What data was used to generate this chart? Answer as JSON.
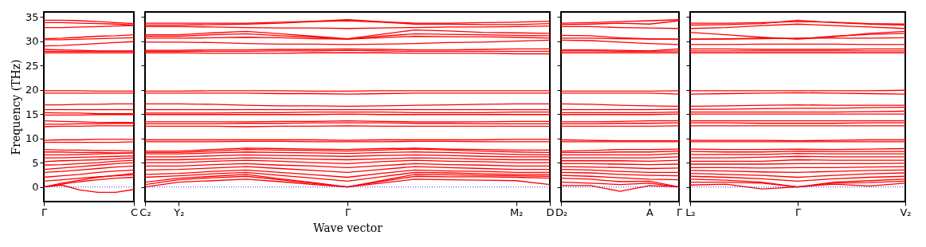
{
  "chart_data": [
    {
      "type": "line",
      "ylabel": "Frequency (THz)",
      "categories": [
        "Γ",
        null,
        null,
        null,
        null,
        "C"
      ],
      "ylim": [
        -3,
        36
      ],
      "yticks": [
        0,
        5,
        10,
        15,
        20,
        25,
        30,
        35
      ],
      "ref_lines": [
        {
          "axis": "y",
          "value": 0,
          "color": "#0000ff",
          "line_style": "dotted"
        }
      ],
      "series": [
        {
          "color": "#ff0000",
          "values": [
            0,
            0.4,
            -0.6,
            -1.1,
            -1.1,
            -0.5
          ]
        },
        {
          "color": "#ff0000",
          "values": [
            0,
            0.6,
            1.1,
            1.5,
            1.8,
            2.0
          ]
        },
        {
          "color": "#ff0000",
          "values": [
            0,
            0.8,
            1.4,
            2.0,
            2.4,
            2.8
          ]
        },
        {
          "color": "#ff0000",
          "values": [
            1.2,
            1.5,
            1.8,
            2.1,
            2.3,
            2.5
          ]
        },
        {
          "color": "#ff0000",
          "values": [
            2.0,
            2.3,
            2.6,
            3.0,
            3.3,
            3.5
          ]
        },
        {
          "color": "#ff0000",
          "values": [
            3.0,
            3.2,
            3.5,
            3.8,
            4.1,
            4.3
          ]
        },
        {
          "color": "#ff0000",
          "values": [
            3.6,
            3.9,
            4.2,
            4.5,
            4.8,
            5.0
          ]
        },
        {
          "color": "#ff0000",
          "values": [
            4.5,
            4.6,
            4.8,
            5.0,
            5.3,
            5.5
          ]
        },
        {
          "color": "#ff0000",
          "values": [
            5.2,
            5.4,
            5.5,
            5.6,
            5.8,
            6.0
          ]
        },
        {
          "color": "#ff0000",
          "values": [
            6.0,
            6.0,
            6.1,
            6.2,
            6.3,
            6.4
          ]
        },
        {
          "color": "#ff0000",
          "values": [
            6.6,
            6.6,
            6.7,
            6.8,
            6.9,
            7.0
          ]
        },
        {
          "color": "#ff0000",
          "values": [
            7.2,
            7.2,
            7.1,
            7.1,
            7.0,
            7.0
          ]
        },
        {
          "color": "#ff0000",
          "values": [
            7.7,
            7.6,
            7.6,
            7.5,
            7.5,
            7.4
          ]
        },
        {
          "color": "#ff0000",
          "values": [
            9.2,
            9.2,
            9.2,
            9.2,
            9.2,
            9.3
          ]
        },
        {
          "color": "#ff0000",
          "values": [
            9.6,
            9.7,
            9.7,
            9.8,
            9.8,
            9.8
          ]
        },
        {
          "color": "#ff0000",
          "values": [
            12.4,
            12.5,
            12.5,
            12.6,
            12.6,
            12.6
          ]
        },
        {
          "color": "#ff0000",
          "values": [
            12.9,
            12.9,
            13.0,
            13.0,
            13.1,
            13.1
          ]
        },
        {
          "color": "#ff0000",
          "values": [
            13.6,
            13.5,
            13.4,
            13.3,
            13.3,
            13.3
          ]
        },
        {
          "color": "#ff0000",
          "values": [
            14.8,
            14.8,
            14.8,
            14.9,
            14.9,
            14.9
          ]
        },
        {
          "color": "#ff0000",
          "values": [
            15.3,
            15.2,
            15.2,
            15.1,
            15.1,
            15.1
          ]
        },
        {
          "color": "#ff0000",
          "values": [
            15.9,
            15.9,
            15.9,
            15.9,
            15.9,
            15.9
          ]
        },
        {
          "color": "#ff0000",
          "values": [
            16.9,
            16.9,
            17.0,
            17.0,
            17.1,
            17.1
          ]
        },
        {
          "color": "#ff0000",
          "values": [
            19.3,
            19.3,
            19.3,
            19.3,
            19.3,
            19.3
          ]
        },
        {
          "color": "#ff0000",
          "values": [
            19.8,
            19.8,
            19.8,
            19.7,
            19.7,
            19.7
          ]
        },
        {
          "color": "#ff0000",
          "values": [
            27.6,
            27.6,
            27.6,
            27.6,
            27.6,
            27.6
          ]
        },
        {
          "color": "#ff0000",
          "values": [
            27.9,
            27.9,
            27.9,
            27.9,
            27.9,
            27.9
          ]
        },
        {
          "color": "#ff0000",
          "values": [
            28.3,
            28.2,
            28.1,
            28.0,
            28.0,
            28.0
          ]
        },
        {
          "color": "#ff0000",
          "values": [
            29.0,
            29.1,
            29.3,
            29.5,
            29.7,
            29.9
          ]
        },
        {
          "color": "#ff0000",
          "values": [
            30.3,
            30.3,
            30.4,
            30.5,
            30.6,
            30.7
          ]
        },
        {
          "color": "#ff0000",
          "values": [
            30.5,
            30.6,
            30.8,
            31.0,
            31.1,
            31.3
          ]
        },
        {
          "color": "#ff0000",
          "values": [
            32.8,
            32.8,
            32.9,
            33.0,
            33.1,
            33.2
          ]
        },
        {
          "color": "#ff0000",
          "values": [
            33.8,
            33.8,
            33.7,
            33.6,
            33.5,
            33.3
          ]
        },
        {
          "color": "#ff0000",
          "values": [
            34.3,
            34.3,
            34.2,
            34.0,
            33.8,
            33.6
          ]
        }
      ]
    },
    {
      "type": "line",
      "xlabel": "Wave vector",
      "tick_labels": "x",
      "categories": [
        "C₂",
        "Y₂",
        null,
        null,
        null,
        null,
        "Γ",
        null,
        null,
        null,
        null,
        "M₂",
        "D"
      ],
      "ylim": [
        -3,
        36
      ],
      "yticks": [
        0,
        5,
        10,
        15,
        20,
        25,
        30,
        35
      ],
      "ref_lines": [
        {
          "axis": "y",
          "value": 0,
          "color": "#0000ff",
          "line_style": "dotted"
        }
      ],
      "series": [
        {
          "color": "#ff0000",
          "values": [
            0,
            1.0,
            1.3,
            1.6,
            1.1,
            0.5,
            0,
            0.8,
            1.6,
            1.5,
            1.4,
            1.3,
            0.5
          ]
        },
        {
          "color": "#ff0000",
          "values": [
            0.5,
            1.5,
            1.9,
            2.2,
            1.5,
            0.7,
            0,
            1.1,
            2.2,
            2.1,
            2.1,
            2.0,
            1.8
          ]
        },
        {
          "color": "#ff0000",
          "values": [
            1.0,
            1.8,
            2.2,
            2.6,
            1.7,
            0.9,
            0,
            1.3,
            2.6,
            2.5,
            2.4,
            2.3,
            2.2
          ]
        },
        {
          "color": "#ff0000",
          "values": [
            2.0,
            2.3,
            2.7,
            3.0,
            2.4,
            1.8,
            1.2,
            2.1,
            3.0,
            2.9,
            2.7,
            2.6,
            2.6
          ]
        },
        {
          "color": "#ff0000",
          "values": [
            2.6,
            2.8,
            3.2,
            3.5,
            3.0,
            2.5,
            2.0,
            2.8,
            3.5,
            3.3,
            3.2,
            3.0,
            3.0
          ]
        },
        {
          "color": "#ff0000",
          "values": [
            3.5,
            3.6,
            3.9,
            4.2,
            3.8,
            3.4,
            3.0,
            3.6,
            4.2,
            4.0,
            3.8,
            3.6,
            3.6
          ]
        },
        {
          "color": "#ff0000",
          "values": [
            4.3,
            4.3,
            4.6,
            4.8,
            4.5,
            4.3,
            4.0,
            4.4,
            4.8,
            4.6,
            4.5,
            4.3,
            4.3
          ]
        },
        {
          "color": "#ff0000",
          "values": [
            5.0,
            5.0,
            5.3,
            5.5,
            5.3,
            5.0,
            4.8,
            5.2,
            5.5,
            5.3,
            5.2,
            5.0,
            5.0
          ]
        },
        {
          "color": "#ff0000",
          "values": [
            5.6,
            5.6,
            5.8,
            6.0,
            5.9,
            5.7,
            5.6,
            5.8,
            6.0,
            5.9,
            5.7,
            5.6,
            5.6
          ]
        },
        {
          "color": "#ff0000",
          "values": [
            6.2,
            6.2,
            6.4,
            6.6,
            6.5,
            6.4,
            6.3,
            6.5,
            6.6,
            6.5,
            6.3,
            6.2,
            6.2
          ]
        },
        {
          "color": "#ff0000",
          "values": [
            6.8,
            6.8,
            7.0,
            7.2,
            7.1,
            7.0,
            6.9,
            7.1,
            7.2,
            7.1,
            6.9,
            6.7,
            6.6
          ]
        },
        {
          "color": "#ff0000",
          "values": [
            7.1,
            7.1,
            7.4,
            7.7,
            7.6,
            7.5,
            7.4,
            7.6,
            7.8,
            7.6,
            7.4,
            7.2,
            7.1
          ]
        },
        {
          "color": "#ff0000",
          "values": [
            7.4,
            7.4,
            7.7,
            8.0,
            7.9,
            7.8,
            7.7,
            7.9,
            8.0,
            7.8,
            7.7,
            7.6,
            7.6
          ]
        },
        {
          "color": "#ff0000",
          "values": [
            9.3,
            9.3,
            9.3,
            9.4,
            9.4,
            9.3,
            9.3,
            9.3,
            9.4,
            9.4,
            9.3,
            9.3,
            9.3
          ]
        },
        {
          "color": "#ff0000",
          "values": [
            9.7,
            9.7,
            9.7,
            9.7,
            9.7,
            9.7,
            9.6,
            9.7,
            9.7,
            9.7,
            9.7,
            9.8,
            9.8
          ]
        },
        {
          "color": "#ff0000",
          "values": [
            12.5,
            12.5,
            12.5,
            12.4,
            12.5,
            12.5,
            12.6,
            12.5,
            12.5,
            12.5,
            12.5,
            12.5,
            12.5
          ]
        },
        {
          "color": "#ff0000",
          "values": [
            13.0,
            13.0,
            13.0,
            13.1,
            13.1,
            13.2,
            13.2,
            13.2,
            13.1,
            13.1,
            13.0,
            13.0,
            13.0
          ]
        },
        {
          "color": "#ff0000",
          "values": [
            13.4,
            13.4,
            13.4,
            13.4,
            13.5,
            13.5,
            13.6,
            13.5,
            13.4,
            13.4,
            13.4,
            13.5,
            13.5
          ]
        },
        {
          "color": "#ff0000",
          "values": [
            14.9,
            14.9,
            14.9,
            14.9,
            14.9,
            14.9,
            15.0,
            14.9,
            14.9,
            14.9,
            14.9,
            14.9,
            14.9
          ]
        },
        {
          "color": "#ff0000",
          "values": [
            15.2,
            15.2,
            15.2,
            15.3,
            15.3,
            15.4,
            15.4,
            15.4,
            15.3,
            15.3,
            15.3,
            15.4,
            15.4
          ]
        },
        {
          "color": "#ff0000",
          "values": [
            15.9,
            15.9,
            15.9,
            15.9,
            15.9,
            15.9,
            15.9,
            15.9,
            15.9,
            15.9,
            15.9,
            15.9,
            15.9
          ]
        },
        {
          "color": "#ff0000",
          "values": [
            17.1,
            17.1,
            17.0,
            16.8,
            16.7,
            16.7,
            16.6,
            16.7,
            16.8,
            16.9,
            17.0,
            17.1,
            17.1
          ]
        },
        {
          "color": "#ff0000",
          "values": [
            19.3,
            19.3,
            19.3,
            19.3,
            19.2,
            19.2,
            19.1,
            19.2,
            19.3,
            19.3,
            19.3,
            19.3,
            19.3
          ]
        },
        {
          "color": "#ff0000",
          "values": [
            19.7,
            19.7,
            19.8,
            19.8,
            19.8,
            19.7,
            19.7,
            19.8,
            19.8,
            19.8,
            19.8,
            19.8,
            19.8
          ]
        },
        {
          "color": "#ff0000",
          "values": [
            27.6,
            27.6,
            27.5,
            27.5,
            27.5,
            27.6,
            27.6,
            27.6,
            27.5,
            27.5,
            27.5,
            27.4,
            27.4
          ]
        },
        {
          "color": "#ff0000",
          "values": [
            27.9,
            27.9,
            27.9,
            27.9,
            28.0,
            28.0,
            28.1,
            28.0,
            27.9,
            27.9,
            27.9,
            27.9,
            27.9
          ]
        },
        {
          "color": "#ff0000",
          "values": [
            28.1,
            28.1,
            28.2,
            28.2,
            28.3,
            28.3,
            28.4,
            28.3,
            28.2,
            28.2,
            28.3,
            28.4,
            28.4
          ]
        },
        {
          "color": "#ff0000",
          "values": [
            29.8,
            29.8,
            29.7,
            29.5,
            29.4,
            29.4,
            29.3,
            29.4,
            29.5,
            29.7,
            29.8,
            30.0,
            30.2
          ]
        },
        {
          "color": "#ff0000",
          "values": [
            30.6,
            30.6,
            30.7,
            30.8,
            30.7,
            30.5,
            30.4,
            30.7,
            31.0,
            30.9,
            30.9,
            30.8,
            30.6
          ]
        },
        {
          "color": "#ff0000",
          "values": [
            31.0,
            31.0,
            31.3,
            31.5,
            31.1,
            30.8,
            30.4,
            31.0,
            31.5,
            31.4,
            31.3,
            31.2,
            31.1
          ]
        },
        {
          "color": "#ff0000",
          "values": [
            31.3,
            31.3,
            31.7,
            32.0,
            31.5,
            31.0,
            30.5,
            31.4,
            32.3,
            32.1,
            31.8,
            31.7,
            31.6
          ]
        },
        {
          "color": "#ff0000",
          "values": [
            33.0,
            33.0,
            32.9,
            32.8,
            32.7,
            32.7,
            32.6,
            32.7,
            32.8,
            32.9,
            32.9,
            33.0,
            33.1
          ]
        },
        {
          "color": "#ff0000",
          "values": [
            33.3,
            33.3,
            33.4,
            33.5,
            33.7,
            34.0,
            34.2,
            33.9,
            33.5,
            33.5,
            33.4,
            33.4,
            33.6
          ]
        },
        {
          "color": "#ff0000",
          "values": [
            33.7,
            33.7,
            33.7,
            33.7,
            33.9,
            34.1,
            34.4,
            34.0,
            33.7,
            33.7,
            33.8,
            33.9,
            34.1
          ]
        }
      ]
    },
    {
      "type": "line",
      "tick_labels": "x",
      "categories": [
        "D₂",
        null,
        null,
        "A",
        "Γ"
      ],
      "ylim": [
        -3,
        36
      ],
      "yticks": [
        0,
        5,
        10,
        15,
        20,
        25,
        30,
        35
      ],
      "ref_lines": [
        {
          "axis": "y",
          "value": 0,
          "color": "#0000ff",
          "line_style": "dotted"
        }
      ],
      "series": [
        {
          "color": "#ff0000",
          "values": [
            0.3,
            0.3,
            -0.9,
            0.3,
            0
          ]
        },
        {
          "color": "#ff0000",
          "values": [
            1.0,
            0.8,
            0.5,
            0.8,
            0
          ]
        },
        {
          "color": "#ff0000",
          "values": [
            1.8,
            1.6,
            1.1,
            1.2,
            0
          ]
        },
        {
          "color": "#ff0000",
          "values": [
            2.4,
            2.2,
            1.9,
            1.6,
            1.5
          ]
        },
        {
          "color": "#ff0000",
          "values": [
            3.0,
            2.9,
            2.6,
            2.4,
            2.3
          ]
        },
        {
          "color": "#ff0000",
          "values": [
            3.6,
            3.5,
            3.2,
            3.0,
            3.0
          ]
        },
        {
          "color": "#ff0000",
          "values": [
            4.2,
            4.1,
            4.0,
            3.8,
            3.9
          ]
        },
        {
          "color": "#ff0000",
          "values": [
            4.8,
            4.8,
            4.7,
            4.6,
            4.7
          ]
        },
        {
          "color": "#ff0000",
          "values": [
            5.4,
            5.4,
            5.4,
            5.3,
            5.5
          ]
        },
        {
          "color": "#ff0000",
          "values": [
            6.0,
            6.0,
            6.0,
            6.0,
            6.2
          ]
        },
        {
          "color": "#ff0000",
          "values": [
            6.6,
            6.6,
            6.6,
            6.6,
            6.9
          ]
        },
        {
          "color": "#ff0000",
          "values": [
            7.1,
            7.1,
            7.2,
            7.2,
            7.4
          ]
        },
        {
          "color": "#ff0000",
          "values": [
            7.4,
            7.5,
            7.7,
            7.7,
            7.8
          ]
        },
        {
          "color": "#ff0000",
          "values": [
            9.3,
            9.3,
            9.3,
            9.3,
            9.3
          ]
        },
        {
          "color": "#ff0000",
          "values": [
            9.7,
            9.6,
            9.5,
            9.5,
            9.5
          ]
        },
        {
          "color": "#ff0000",
          "values": [
            12.5,
            12.5,
            12.5,
            12.5,
            12.6
          ]
        },
        {
          "color": "#ff0000",
          "values": [
            13.0,
            13.0,
            13.1,
            13.1,
            13.2
          ]
        },
        {
          "color": "#ff0000",
          "values": [
            13.4,
            13.4,
            13.5,
            13.6,
            13.6
          ]
        },
        {
          "color": "#ff0000",
          "values": [
            14.9,
            14.9,
            14.9,
            14.9,
            15.0
          ]
        },
        {
          "color": "#ff0000",
          "values": [
            15.3,
            15.3,
            15.3,
            15.3,
            15.4
          ]
        },
        {
          "color": "#ff0000",
          "values": [
            15.9,
            15.9,
            15.9,
            15.9,
            16.0
          ]
        },
        {
          "color": "#ff0000",
          "values": [
            17.1,
            17.0,
            16.8,
            16.7,
            16.6
          ]
        },
        {
          "color": "#ff0000",
          "values": [
            19.3,
            19.3,
            19.3,
            19.3,
            19.1
          ]
        },
        {
          "color": "#ff0000",
          "values": [
            19.7,
            19.7,
            19.7,
            19.7,
            19.8
          ]
        },
        {
          "color": "#ff0000",
          "values": [
            27.6,
            27.6,
            27.6,
            27.6,
            27.6
          ]
        },
        {
          "color": "#ff0000",
          "values": [
            28.0,
            28.0,
            27.9,
            27.9,
            28.0
          ]
        },
        {
          "color": "#ff0000",
          "values": [
            28.2,
            28.2,
            28.1,
            28.0,
            28.4
          ]
        },
        {
          "color": "#ff0000",
          "values": [
            30.2,
            30.1,
            29.8,
            29.5,
            29.3
          ]
        },
        {
          "color": "#ff0000",
          "values": [
            30.6,
            30.6,
            30.5,
            30.4,
            30.4
          ]
        },
        {
          "color": "#ff0000",
          "values": [
            31.2,
            31.1,
            30.7,
            30.5,
            30.4
          ]
        },
        {
          "color": "#ff0000",
          "values": [
            33.0,
            33.0,
            32.8,
            32.7,
            32.6
          ]
        },
        {
          "color": "#ff0000",
          "values": [
            33.4,
            33.5,
            33.7,
            33.5,
            34.2
          ]
        },
        {
          "color": "#ff0000",
          "values": [
            33.7,
            33.8,
            34.0,
            34.2,
            34.4
          ]
        }
      ]
    },
    {
      "type": "line",
      "tick_labels": "x",
      "categories": [
        "L₂",
        null,
        null,
        "Γ",
        null,
        null,
        "V₂"
      ],
      "ylim": [
        -3,
        36
      ],
      "yticks": [
        0,
        5,
        10,
        15,
        20,
        25,
        30,
        35
      ],
      "ref_lines": [
        {
          "axis": "y",
          "value": 0,
          "color": "#0000ff",
          "line_style": "dotted"
        }
      ],
      "series": [
        {
          "color": "#ff0000",
          "values": [
            0.4,
            0.6,
            -0.4,
            0,
            0.6,
            0.2,
            0.8
          ]
        },
        {
          "color": "#ff0000",
          "values": [
            1.0,
            1.0,
            0.8,
            0,
            0.8,
            0.9,
            1.2
          ]
        },
        {
          "color": "#ff0000",
          "values": [
            1.6,
            1.4,
            1.0,
            0,
            1.0,
            1.3,
            1.6
          ]
        },
        {
          "color": "#ff0000",
          "values": [
            2.2,
            2.0,
            1.7,
            1.2,
            1.7,
            2.0,
            2.2
          ]
        },
        {
          "color": "#ff0000",
          "values": [
            2.8,
            2.6,
            2.4,
            2.0,
            2.4,
            2.7,
            2.9
          ]
        },
        {
          "color": "#ff0000",
          "values": [
            3.4,
            3.3,
            3.1,
            3.0,
            3.2,
            3.4,
            3.5
          ]
        },
        {
          "color": "#ff0000",
          "values": [
            4.0,
            4.0,
            3.9,
            4.0,
            4.0,
            4.1,
            4.2
          ]
        },
        {
          "color": "#ff0000",
          "values": [
            4.7,
            4.7,
            4.7,
            4.8,
            4.8,
            4.8,
            4.9
          ]
        },
        {
          "color": "#ff0000",
          "values": [
            5.3,
            5.3,
            5.3,
            5.6,
            5.5,
            5.5,
            5.5
          ]
        },
        {
          "color": "#ff0000",
          "values": [
            6.0,
            6.0,
            6.1,
            6.3,
            6.2,
            6.2,
            6.2
          ]
        },
        {
          "color": "#ff0000",
          "values": [
            6.7,
            6.7,
            6.7,
            6.9,
            6.8,
            6.8,
            6.8
          ]
        },
        {
          "color": "#ff0000",
          "values": [
            7.3,
            7.2,
            7.2,
            7.4,
            7.3,
            7.3,
            7.3
          ]
        },
        {
          "color": "#ff0000",
          "values": [
            7.8,
            7.7,
            7.7,
            7.8,
            7.7,
            7.8,
            7.9
          ]
        },
        {
          "color": "#ff0000",
          "values": [
            9.3,
            9.3,
            9.3,
            9.3,
            9.3,
            9.3,
            9.3
          ]
        },
        {
          "color": "#ff0000",
          "values": [
            9.6,
            9.6,
            9.6,
            9.5,
            9.6,
            9.7,
            9.7
          ]
        },
        {
          "color": "#ff0000",
          "values": [
            12.6,
            12.6,
            12.6,
            12.6,
            12.6,
            12.6,
            12.6
          ]
        },
        {
          "color": "#ff0000",
          "values": [
            13.2,
            13.2,
            13.1,
            13.1,
            13.1,
            13.2,
            13.2
          ]
        },
        {
          "color": "#ff0000",
          "values": [
            13.6,
            13.6,
            13.6,
            13.6,
            13.6,
            13.6,
            13.6
          ]
        },
        {
          "color": "#ff0000",
          "values": [
            15.0,
            15.0,
            15.0,
            15.0,
            15.0,
            15.0,
            15.0
          ]
        },
        {
          "color": "#ff0000",
          "values": [
            15.4,
            15.4,
            15.4,
            15.4,
            15.4,
            15.5,
            15.6
          ]
        },
        {
          "color": "#ff0000",
          "values": [
            16.0,
            16.0,
            16.1,
            16.2,
            16.2,
            16.3,
            16.4
          ]
        },
        {
          "color": "#ff0000",
          "values": [
            16.6,
            16.7,
            16.8,
            16.9,
            16.8,
            16.8,
            16.8
          ]
        },
        {
          "color": "#ff0000",
          "values": [
            19.1,
            19.2,
            19.3,
            19.4,
            19.3,
            19.2,
            19.1
          ]
        },
        {
          "color": "#ff0000",
          "values": [
            19.8,
            19.8,
            19.8,
            19.8,
            19.8,
            19.8,
            19.9
          ]
        },
        {
          "color": "#ff0000",
          "values": [
            27.6,
            27.6,
            27.6,
            27.6,
            27.6,
            27.6,
            27.6
          ]
        },
        {
          "color": "#ff0000",
          "values": [
            28.0,
            28.0,
            28.0,
            28.0,
            28.0,
            28.0,
            28.0
          ]
        },
        {
          "color": "#ff0000",
          "values": [
            28.4,
            28.4,
            28.3,
            28.3,
            28.3,
            28.4,
            28.4
          ]
        },
        {
          "color": "#ff0000",
          "values": [
            29.3,
            29.3,
            29.4,
            29.4,
            29.4,
            29.3,
            29.3
          ]
        },
        {
          "color": "#ff0000",
          "values": [
            30.4,
            30.4,
            30.5,
            30.6,
            30.6,
            30.6,
            30.7
          ]
        },
        {
          "color": "#ff0000",
          "values": [
            30.4,
            30.5,
            30.6,
            30.5,
            31.0,
            31.4,
            31.6
          ]
        },
        {
          "color": "#ff0000",
          "values": [
            31.8,
            31.3,
            30.8,
            30.4,
            30.9,
            31.6,
            32.0
          ]
        },
        {
          "color": "#ff0000",
          "values": [
            32.6,
            32.8,
            33.2,
            33.5,
            33.2,
            32.9,
            32.6
          ]
        },
        {
          "color": "#ff0000",
          "values": [
            33.3,
            33.4,
            33.6,
            34.3,
            33.8,
            33.5,
            33.3
          ]
        },
        {
          "color": "#ff0000",
          "values": [
            33.7,
            33.7,
            33.8,
            34.0,
            33.9,
            33.6,
            33.5
          ]
        }
      ]
    }
  ]
}
